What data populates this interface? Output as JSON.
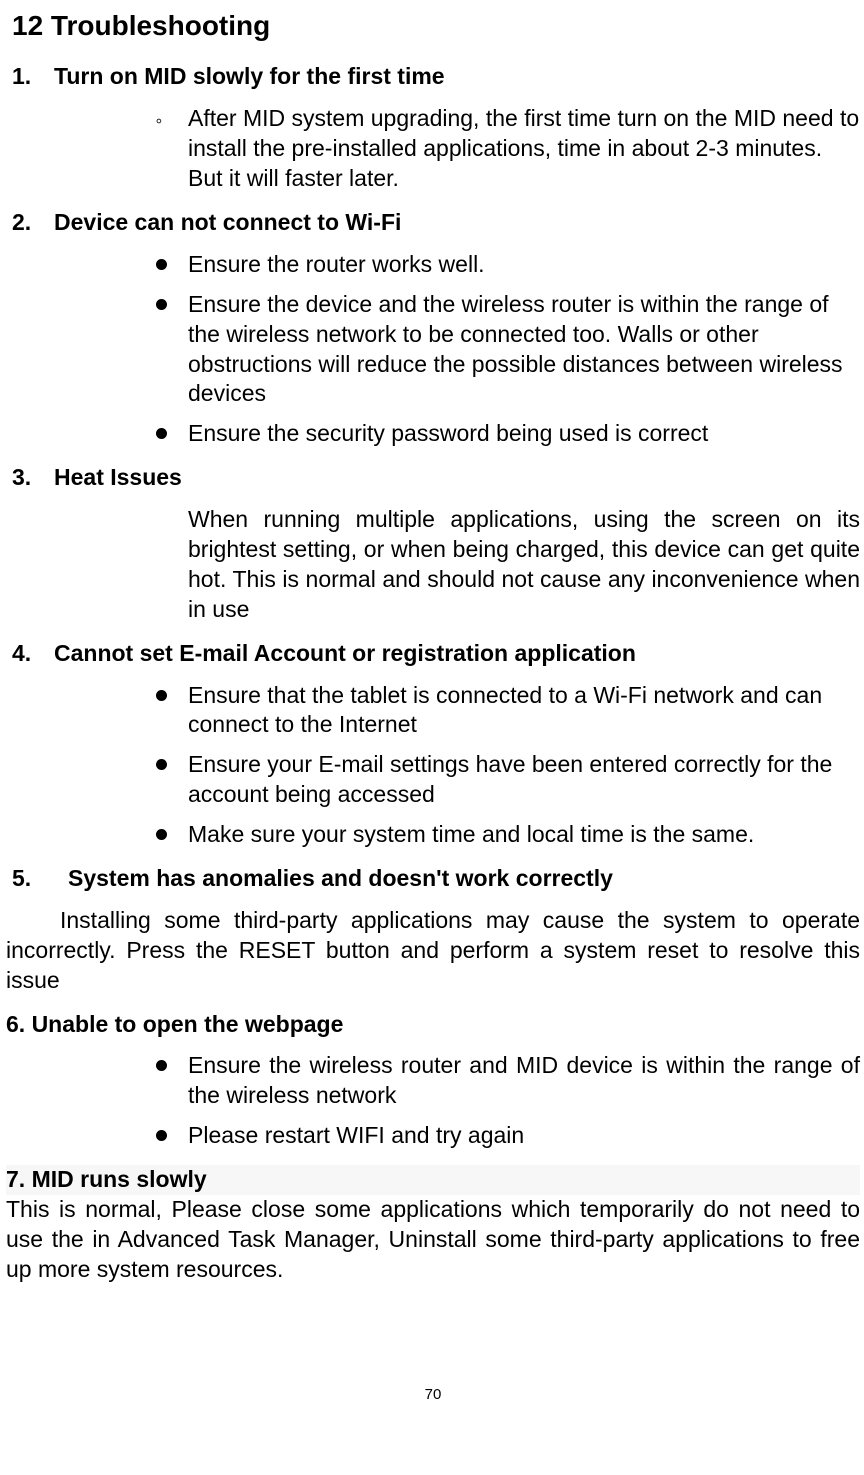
{
  "title": "12 Troubleshooting",
  "items": [
    {
      "num": "1.",
      "head": "Turn on MID slowly for the first time",
      "style": "circle",
      "points": [
        "After MID system upgrading, the first time turn on the MID need to install the pre-installed applications, time in about 2-3 minutes. But it will faster later."
      ]
    },
    {
      "num": "2.",
      "head": "Device can not connect to Wi-Fi",
      "style": "bullet",
      "points": [
        "Ensure the router works well.",
        "Ensure the device and the wireless router is within the range of the wireless network to be connected too. Walls or other obstructions will reduce the possible distances between wireless devices",
        "Ensure the security password being used is correct"
      ]
    },
    {
      "num": "3.",
      "head": "Heat Issues",
      "style": "para",
      "para": "When running multiple applications, using the screen on its brightest setting, or when being charged, this device can get quite hot. This is normal and should not cause any inconvenience when in use"
    },
    {
      "num": "4.",
      "head": "Cannot set E-mail Account or registration application",
      "style": "bullet",
      "points": [
        "Ensure that the tablet is connected to a Wi-Fi network and can connect to the Internet",
        "Ensure your E-mail settings have been entered correctly for the account being accessed",
        "Make sure your system time and local time is the same."
      ]
    },
    {
      "num": "5.",
      "head": "System has anomalies and doesn't work correctly",
      "style": "flush",
      "wide_num": true,
      "para": "Installing some third-party applications may cause the system to operate incorrectly. Press the RESET button and perform a system reset to resolve this issue"
    },
    {
      "num": "6.",
      "head": "Unable to open the webpage",
      "style": "bullet_justify",
      "nopad": true,
      "nospace": true,
      "points": [
        "Ensure the wireless router and MID device is within the range of the wireless network",
        "Please restart WIFI and try again"
      ]
    },
    {
      "num": "7.",
      "head": "MID runs slowly",
      "style": "flush_noind",
      "nopad": true,
      "nospace": true,
      "highlight": true,
      "para": "This is normal, Please close some applications which temporarily do not need to use the in Advanced Task Manager, Uninstall some third-party applications to free up more system resources."
    }
  ],
  "page_number": "70"
}
